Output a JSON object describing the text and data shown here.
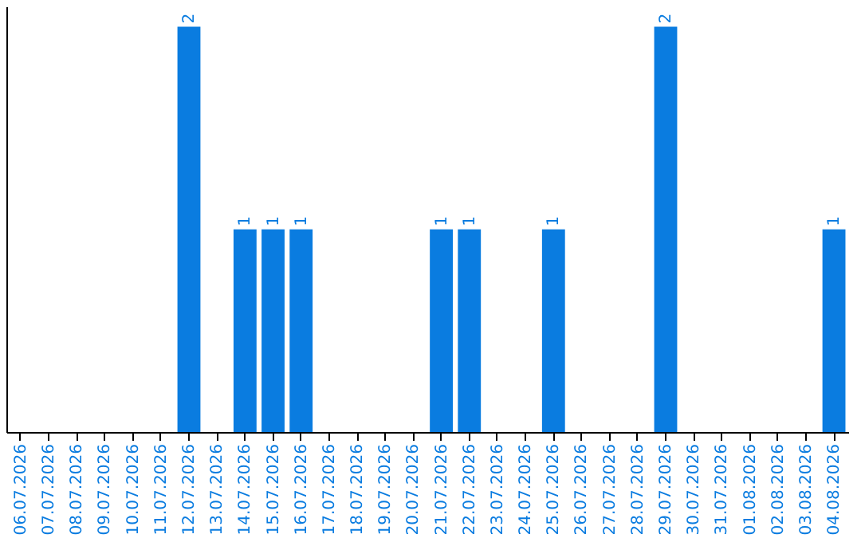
{
  "chart_data": {
    "type": "bar",
    "categories": [
      "06.07.2026",
      "07.07.2026",
      "08.07.2026",
      "09.07.2026",
      "10.07.2026",
      "11.07.2026",
      "12.07.2026",
      "13.07.2026",
      "14.07.2026",
      "15.07.2026",
      "16.07.2026",
      "17.07.2026",
      "18.07.2026",
      "19.07.2026",
      "20.07.2026",
      "21.07.2026",
      "22.07.2026",
      "23.07.2026",
      "24.07.2026",
      "25.07.2026",
      "26.07.2026",
      "27.07.2026",
      "28.07.2026",
      "29.07.2026",
      "30.07.2026",
      "31.07.2026",
      "01.08.2026",
      "02.08.2026",
      "03.08.2026",
      "04.08.2026"
    ],
    "values": [
      0,
      0,
      0,
      0,
      0,
      0,
      2,
      0,
      1,
      1,
      1,
      0,
      0,
      0,
      0,
      1,
      1,
      0,
      0,
      1,
      0,
      0,
      0,
      2,
      0,
      0,
      0,
      0,
      0,
      1
    ],
    "value_labels": [
      null,
      null,
      null,
      null,
      null,
      null,
      "2",
      null,
      "1",
      "1",
      "1",
      null,
      null,
      null,
      null,
      "1",
      "1",
      null,
      null,
      "1",
      null,
      null,
      null,
      "2",
      null,
      null,
      null,
      null,
      null,
      "1"
    ],
    "color": "#0a7ce0",
    "ylim": [
      0,
      2.1
    ],
    "tick_labels": "x",
    "grid": false
  }
}
